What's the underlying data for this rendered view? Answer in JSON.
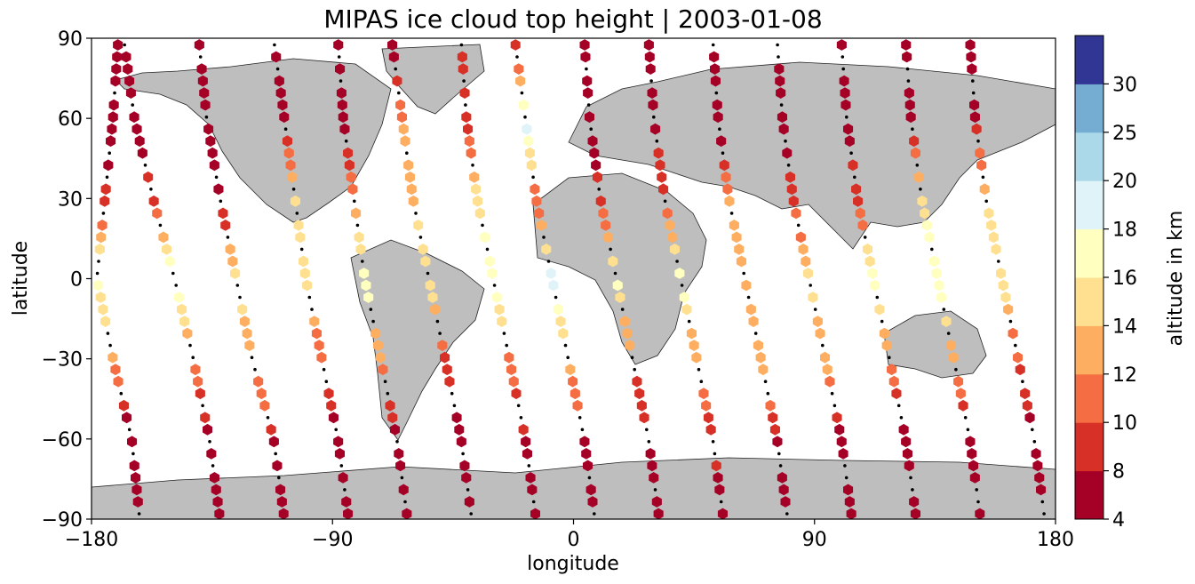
{
  "chart_data": {
    "type": "scatter",
    "title": "MIPAS ice cloud top height | 2003-01-08",
    "xlabel": "longitude",
    "ylabel": "latitude",
    "xlim": [
      -180,
      180
    ],
    "ylim": [
      -90,
      90
    ],
    "xticks": [
      -180,
      -90,
      0,
      90,
      180
    ],
    "yticks": [
      90,
      60,
      30,
      0,
      -30,
      -60,
      -90
    ],
    "xtick_labels": [
      "−180",
      "−90",
      "0",
      "90",
      "180"
    ],
    "ytick_labels": [
      "90",
      "60",
      "30",
      "0",
      "−30",
      "−60",
      "−90"
    ],
    "grid": false,
    "background_map": "grey land masses with coastlines",
    "colorbar": {
      "label": "altitude in km",
      "ticks": [
        "4",
        "8",
        "10",
        "12",
        "14",
        "16",
        "18",
        "20",
        "25",
        "30"
      ],
      "boundaries": [
        4,
        8,
        10,
        12,
        14,
        16,
        18,
        20,
        25,
        30
      ],
      "colors": [
        "#a50026",
        "#d73027",
        "#f46d43",
        "#fdae61",
        "#fee090",
        "#ffffbf",
        "#e0f3f8",
        "#abd9e9",
        "#74add1",
        "#313695"
      ]
    },
    "track_colors": {
      "clear_sky_marker": "#000000"
    },
    "orbits": [
      {
        "lat": [
          -90,
          -60,
          -30,
          0,
          30,
          60,
          90
        ],
        "lon": [
          -162,
          -165,
          -172,
          -178,
          -175,
          -172,
          -170
        ],
        "alt": [
          5,
          6,
          12,
          17,
          9,
          6,
          5
        ]
      },
      {
        "lat": [
          -90,
          -60,
          -30,
          0,
          30,
          60,
          90
        ],
        "lon": [
          -132,
          -136,
          -142,
          -149,
          -157,
          -164,
          -168
        ],
        "alt": [
          6,
          7,
          12,
          18,
          9,
          7,
          8
        ]
      },
      {
        "lat": [
          -90,
          -60,
          -30,
          0,
          30,
          60,
          90
        ],
        "lon": [
          -108,
          -112,
          -120,
          -126,
          -132,
          -137,
          -140
        ],
        "alt": [
          6,
          8,
          13,
          15,
          7,
          6,
          5
        ]
      },
      {
        "lat": [
          -90,
          -60,
          -30,
          0,
          30,
          60,
          90
        ],
        "lon": [
          -84,
          -88,
          -94,
          -100,
          -104,
          -108,
          -112
        ],
        "alt": [
          5,
          7,
          10,
          16,
          14,
          8,
          6
        ]
      },
      {
        "lat": [
          -90,
          -60,
          -30,
          0,
          30,
          60,
          90
        ],
        "lon": [
          -62,
          -66,
          -72,
          -78,
          -82,
          -86,
          -88
        ],
        "alt": [
          6,
          7,
          12,
          18,
          12,
          7,
          6
        ]
      },
      {
        "lat": [
          -90,
          -60,
          -30,
          0,
          30,
          60,
          90
        ],
        "lon": [
          -38,
          -42,
          -48,
          -54,
          -60,
          -64,
          -68
        ],
        "alt": [
          5,
          6,
          9,
          16,
          13,
          12,
          6
        ]
      },
      {
        "lat": [
          -90,
          -60,
          -30,
          0,
          30,
          60,
          90
        ],
        "lon": [
          -14,
          -18,
          -24,
          -30,
          -36,
          -40,
          -42
        ],
        "alt": [
          7,
          8,
          11,
          18,
          15,
          9,
          8
        ]
      },
      {
        "lat": [
          -90,
          -60,
          -30,
          0,
          30,
          60,
          90
        ],
        "lon": [
          8,
          4,
          -2,
          -8,
          -14,
          -18,
          -22
        ],
        "alt": [
          6,
          8,
          13,
          19,
          10,
          20,
          7
        ]
      },
      {
        "lat": [
          -90,
          -60,
          -30,
          0,
          30,
          60,
          90
        ],
        "lon": [
          32,
          28,
          22,
          16,
          10,
          6,
          4
        ],
        "alt": [
          5,
          7,
          11,
          17,
          9,
          6,
          5
        ]
      },
      {
        "lat": [
          -90,
          -60,
          -30,
          0,
          30,
          60,
          90
        ],
        "lon": [
          56,
          52,
          46,
          40,
          34,
          30,
          28
        ],
        "alt": [
          6,
          9,
          12,
          18,
          10,
          7,
          6
        ]
      },
      {
        "lat": [
          -90,
          -60,
          -30,
          0,
          30,
          60,
          90
        ],
        "lon": [
          80,
          76,
          70,
          64,
          58,
          54,
          52
        ],
        "alt": [
          5,
          8,
          13,
          14,
          12,
          6,
          5
        ]
      },
      {
        "lat": [
          -90,
          -60,
          -30,
          0,
          30,
          60,
          90
        ],
        "lon": [
          104,
          100,
          94,
          88,
          82,
          78,
          76
        ],
        "alt": [
          6,
          7,
          13,
          15,
          9,
          6,
          5
        ]
      },
      {
        "lat": [
          -90,
          -60,
          -30,
          0,
          30,
          60,
          90
        ],
        "lon": [
          128,
          124,
          118,
          112,
          106,
          102,
          100
        ],
        "alt": [
          5,
          7,
          12,
          17,
          9,
          7,
          6
        ]
      },
      {
        "lat": [
          -90,
          -60,
          -30,
          0,
          30,
          60,
          90
        ],
        "lon": [
          152,
          148,
          142,
          136,
          130,
          126,
          124
        ],
        "alt": [
          6,
          8,
          12,
          18,
          15,
          7,
          6
        ]
      },
      {
        "lat": [
          -90,
          -60,
          -30,
          0,
          30,
          60,
          90
        ],
        "lon": [
          176,
          172,
          166,
          160,
          154,
          150,
          148
        ],
        "alt": [
          5,
          7,
          10,
          16,
          14,
          8,
          6
        ]
      }
    ]
  }
}
